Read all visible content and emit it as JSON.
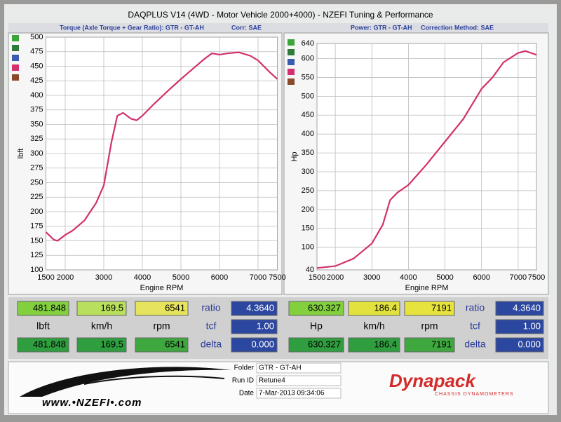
{
  "header": "DAQPLUS V14 (4WD - Motor Vehicle 2000+4000) - NZEFI Tuning & Performance",
  "chart_data": [
    {
      "type": "line",
      "subtitle": "Torque (Axle Torque + Gear Ratio): GTR - GT-AH",
      "correction": "Corr: SAE",
      "y_label": "lbft",
      "x_label": "Engine RPM",
      "color": "#d2306e",
      "x": [
        1500,
        1700,
        1800,
        2000,
        2200,
        2500,
        2800,
        3000,
        3200,
        3350,
        3500,
        3700,
        3850,
        4000,
        4300,
        4700,
        5000,
        5300,
        5600,
        5800,
        6000,
        6200,
        6500,
        6800,
        7000,
        7300,
        7500
      ],
      "values": [
        165,
        152,
        150,
        160,
        168,
        185,
        215,
        245,
        320,
        365,
        370,
        360,
        357,
        365,
        385,
        410,
        428,
        445,
        462,
        472,
        470,
        472,
        474,
        468,
        460,
        440,
        428
      ],
      "xlim": [
        1500,
        7500
      ],
      "xticks": [
        1500,
        2000,
        3000,
        4000,
        5000,
        6000,
        7000,
        7500
      ],
      "ylim": [
        100,
        500
      ],
      "yticks": [
        100,
        125,
        150,
        175,
        200,
        225,
        250,
        275,
        300,
        325,
        350,
        375,
        400,
        425,
        450,
        475,
        500
      ],
      "grid": true
    },
    {
      "type": "line",
      "subtitle": "Power: GTR - GT-AH",
      "correction": "Correction Method: SAE",
      "y_label": "Hp",
      "x_label": "Engine RPM",
      "color": "#d2306e",
      "x": [
        1500,
        2000,
        2500,
        3000,
        3300,
        3500,
        3700,
        4000,
        4500,
        5000,
        5500,
        6000,
        6300,
        6600,
        7000,
        7200,
        7500
      ],
      "values": [
        45,
        50,
        70,
        110,
        160,
        225,
        245,
        265,
        320,
        380,
        440,
        520,
        550,
        590,
        615,
        620,
        610
      ],
      "xlim": [
        1500,
        7500
      ],
      "xticks": [
        1500,
        2000,
        3000,
        4000,
        5000,
        6000,
        7000,
        7500
      ],
      "ylim": [
        40,
        640
      ],
      "yticks": [
        40,
        100,
        150,
        200,
        250,
        300,
        350,
        400,
        450,
        500,
        550,
        600,
        640
      ],
      "grid": true
    }
  ],
  "readouts": [
    [
      [
        "481.848",
        "169.5",
        "6541",
        "ratio",
        "4.3640"
      ],
      [
        "lbft",
        "km/h",
        "rpm",
        "tcf",
        "1.00"
      ],
      [
        "481.848",
        "169.5",
        "6541",
        "delta",
        "0.000"
      ]
    ],
    [
      [
        "630.327",
        "186.4",
        "7191",
        "ratio",
        "4.3640"
      ],
      [
        "Hp",
        "km/h",
        "rpm",
        "tcf",
        "1.00"
      ],
      [
        "630.327",
        "186.4",
        "7191",
        "delta",
        "0.000"
      ]
    ]
  ],
  "footer": {
    "website": "www.•NZEFI•.com",
    "folder_label": "Folder",
    "folder": "GTR - GT-AH",
    "run_label": "Run ID",
    "run": "Retune4",
    "date_label": "Date",
    "date": "7-Mar-2013 09:34:06",
    "brand": "Dynapack",
    "brand_sub": "CHASSIS DYNAMOMETERS"
  }
}
